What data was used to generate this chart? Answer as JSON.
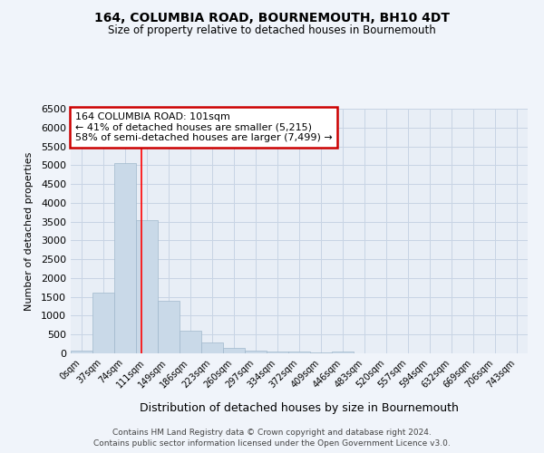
{
  "title": "164, COLUMBIA ROAD, BOURNEMOUTH, BH10 4DT",
  "subtitle": "Size of property relative to detached houses in Bournemouth",
  "xlabel": "Distribution of detached houses by size in Bournemouth",
  "ylabel": "Number of detached properties",
  "bar_labels": [
    "0sqm",
    "37sqm",
    "74sqm",
    "111sqm",
    "149sqm",
    "186sqm",
    "223sqm",
    "260sqm",
    "297sqm",
    "334sqm",
    "372sqm",
    "409sqm",
    "446sqm",
    "483sqm",
    "520sqm",
    "557sqm",
    "594sqm",
    "632sqm",
    "669sqm",
    "706sqm",
    "743sqm"
  ],
  "bar_values": [
    75,
    1620,
    5050,
    3550,
    1400,
    610,
    295,
    145,
    80,
    55,
    45,
    30,
    55,
    0,
    0,
    0,
    0,
    0,
    0,
    0,
    0
  ],
  "bar_color": "#c9d9e8",
  "bar_edge_color": "#a0b8cc",
  "grid_color": "#c8d4e4",
  "annotation_text": "164 COLUMBIA ROAD: 101sqm\n← 41% of detached houses are smaller (5,215)\n58% of semi-detached houses are larger (7,499) →",
  "annotation_box_facecolor": "#ffffff",
  "annotation_box_edgecolor": "#cc0000",
  "redline_x": 2.73,
  "ylim": [
    0,
    6500
  ],
  "yticks": [
    0,
    500,
    1000,
    1500,
    2000,
    2500,
    3000,
    3500,
    4000,
    4500,
    5000,
    5500,
    6000,
    6500
  ],
  "footer1": "Contains HM Land Registry data © Crown copyright and database right 2024.",
  "footer2": "Contains public sector information licensed under the Open Government Licence v3.0.",
  "fig_facecolor": "#f0f4fa",
  "plot_facecolor": "#e8eef6"
}
